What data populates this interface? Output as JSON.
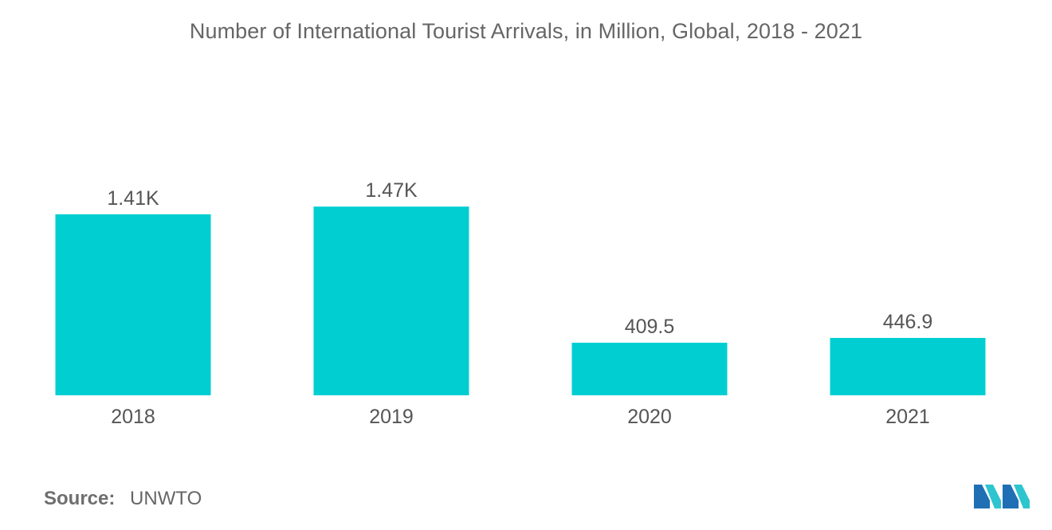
{
  "chart_data": {
    "type": "bar",
    "title": "Number of International Tourist Arrivals, in Million, Global, 2018 - 2021",
    "categories": [
      "2018",
      "2019",
      "2020",
      "2021"
    ],
    "values": [
      1410,
      1470,
      409.5,
      446.9
    ],
    "data_labels": [
      "1.41K",
      "1.47K",
      "409.5",
      "446.9"
    ],
    "xlabel": "",
    "ylabel": "",
    "ylim": [
      0,
      1600
    ],
    "grid": false,
    "legend": "none",
    "bar_color": "#00CED1"
  },
  "source": {
    "label": "Source:",
    "value": "UNWTO"
  },
  "logo": {
    "icon": "mordor-intelligence-logo-icon",
    "colors": [
      "#1F6FB4",
      "#2EC5CF"
    ]
  }
}
